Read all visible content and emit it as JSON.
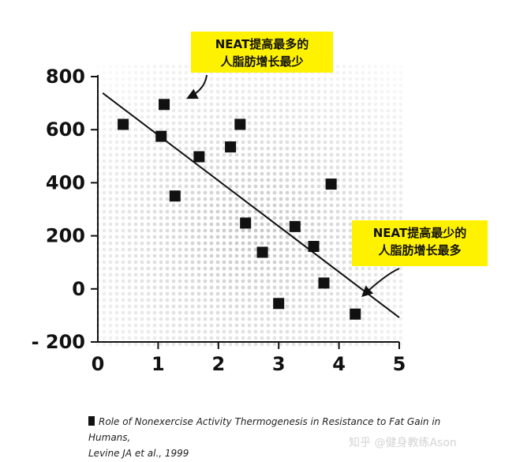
{
  "chart_data": {
    "type": "scatter",
    "xlim": [
      0,
      5
    ],
    "ylim": [
      -200,
      800
    ],
    "x_ticks": [
      0,
      1,
      2,
      3,
      4,
      5
    ],
    "y_ticks": [
      -200,
      0,
      200,
      400,
      600,
      800
    ],
    "y_tick_labels": [
      "- 200",
      "0",
      "200",
      "400",
      "600",
      "800"
    ],
    "grid": false,
    "marker": "square",
    "marker_color": "#111111",
    "points": [
      {
        "x": 0.42,
        "y": 620
      },
      {
        "x": 1.1,
        "y": 695
      },
      {
        "x": 1.05,
        "y": 575
      },
      {
        "x": 1.28,
        "y": 350
      },
      {
        "x": 1.68,
        "y": 498
      },
      {
        "x": 2.2,
        "y": 535
      },
      {
        "x": 2.36,
        "y": 620
      },
      {
        "x": 2.45,
        "y": 248
      },
      {
        "x": 2.73,
        "y": 138
      },
      {
        "x": 3.0,
        "y": -55
      },
      {
        "x": 3.27,
        "y": 235
      },
      {
        "x": 3.58,
        "y": 160
      },
      {
        "x": 3.75,
        "y": 22
      },
      {
        "x": 3.87,
        "y": 395
      },
      {
        "x": 4.27,
        "y": -95
      }
    ],
    "trendline": {
      "x": [
        0.08,
        5.0
      ],
      "y": [
        738,
        -108
      ],
      "color": "#111111"
    },
    "annotations": [
      {
        "lines": [
          "NEAT提高最多的",
          "人脂肪增长最少"
        ],
        "box_color": "#fff200",
        "arrow_target": {
          "x": 0.95,
          "y": 815
        },
        "arrow_target_point": {
          "x": 1.5,
          "y": 720
        }
      },
      {
        "lines": [
          "NEAT提高最少的",
          "人脂肪增长最多"
        ],
        "box_color": "#fff200",
        "arrow_target": {
          "x": 4.5,
          "y": 85
        },
        "arrow_target_point": {
          "x": 4.4,
          "y": -25
        }
      }
    ]
  },
  "citation": {
    "line1": "Role of Nonexercise Activity Thermogenesis in Resistance to Fat Gain in Humans,",
    "line2": "Levine JA et al., 1999"
  },
  "watermark": "知乎 @健身教练Ason"
}
